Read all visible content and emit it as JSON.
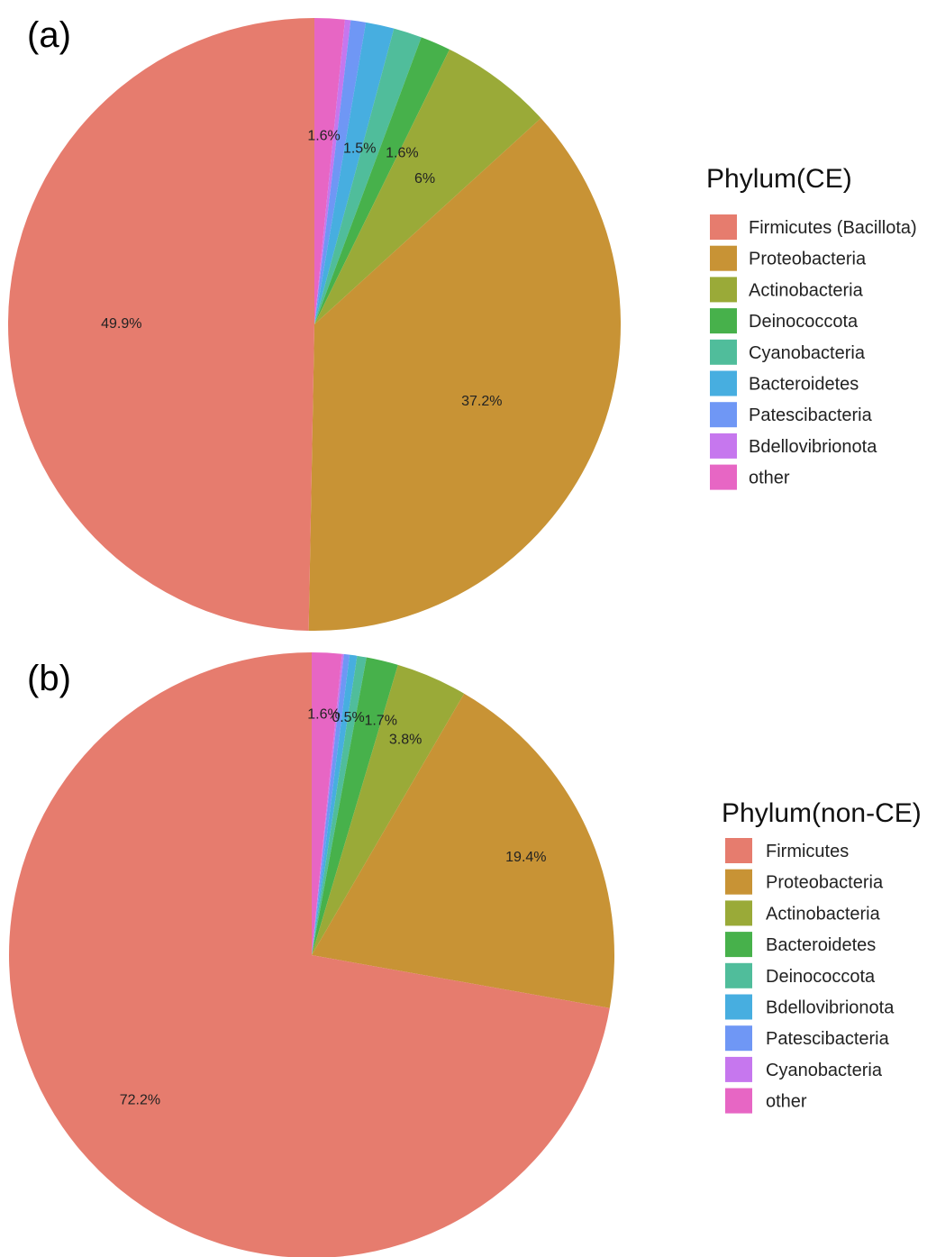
{
  "chart_data": [
    {
      "type": "pie",
      "panel": "(a)",
      "legend_title": "Phylum(CE)",
      "legend_position": "right",
      "slice_order": [
        "other",
        "Bdellovibrionota",
        "Patescibacteria",
        "Bacteroidetes",
        "Cyanobacteria",
        "Deinococcota",
        "Actinobacteria",
        "Proteobacteria",
        "Firmicutes (Bacillota)"
      ],
      "categories": [
        "Firmicutes (Bacillota)",
        "Proteobacteria",
        "Actinobacteria",
        "Deinococcota",
        "Cyanobacteria",
        "Bacteroidetes",
        "Patescibacteria",
        "Bdellovibrionota",
        "other"
      ],
      "values": [
        49.9,
        37.2,
        6.0,
        1.6,
        1.5,
        1.5,
        0.8,
        0.3,
        1.6
      ],
      "colors": [
        "#E67C6E",
        "#C89335",
        "#9AAA38",
        "#47B14B",
        "#50BD9B",
        "#47AEE0",
        "#6F97F5",
        "#C677EE",
        "#E766C4"
      ],
      "slice_labels": [
        {
          "category": "Firmicutes (Bacillota)",
          "text": "49.9%"
        },
        {
          "category": "Proteobacteria",
          "text": "37.2%"
        },
        {
          "category": "Actinobacteria",
          "text": "6%"
        },
        {
          "category": "Deinococcota",
          "text": "1.6%"
        },
        {
          "category": "Cyanobacteria",
          "text": "1.5%"
        },
        {
          "category": "other",
          "text": "1.6%"
        }
      ]
    },
    {
      "type": "pie",
      "panel": "(b)",
      "legend_title": "Phylum(non-CE)",
      "legend_position": "right",
      "slice_order": [
        "other",
        "Cyanobacteria",
        "Patescibacteria",
        "Bdellovibrionota",
        "Deinococcota",
        "Bacteroidetes",
        "Actinobacteria",
        "Proteobacteria",
        "Firmicutes"
      ],
      "categories": [
        "Firmicutes",
        "Proteobacteria",
        "Actinobacteria",
        "Bacteroidetes",
        "Deinococcota",
        "Bdellovibrionota",
        "Patescibacteria",
        "Cyanobacteria",
        "other"
      ],
      "values": [
        72.2,
        19.4,
        3.8,
        1.7,
        0.5,
        0.4,
        0.3,
        0.1,
        1.6
      ],
      "colors": [
        "#E67C6E",
        "#C89335",
        "#9AAA38",
        "#47B14B",
        "#50BD9B",
        "#47AEE0",
        "#6F97F5",
        "#C677EE",
        "#E766C4"
      ],
      "slice_labels": [
        {
          "category": "Firmicutes",
          "text": "72.2%"
        },
        {
          "category": "Proteobacteria",
          "text": "19.4%"
        },
        {
          "category": "Actinobacteria",
          "text": "3.8%"
        },
        {
          "category": "Bacteroidetes",
          "text": "1.7%"
        },
        {
          "category": "Deinococcota",
          "text": "0.5%"
        },
        {
          "category": "other",
          "text": "1.6%"
        }
      ]
    }
  ]
}
